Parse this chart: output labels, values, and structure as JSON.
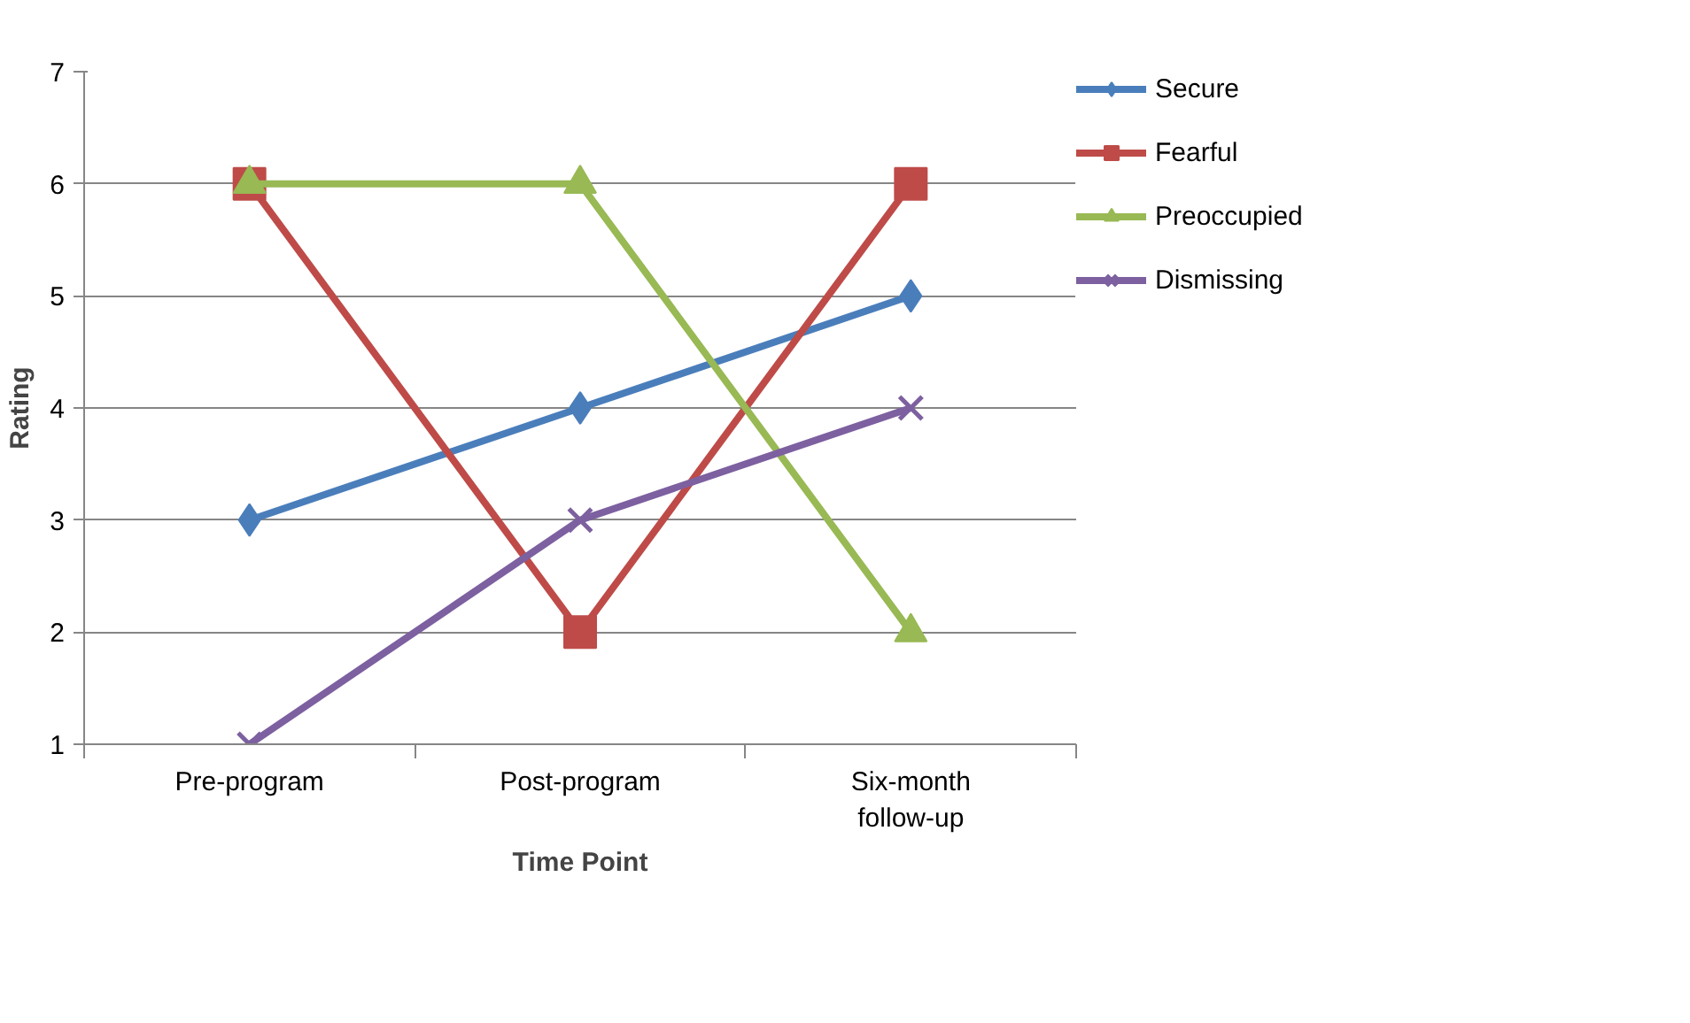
{
  "chart_data": {
    "type": "line",
    "xlabel": "Time Point",
    "ylabel": "Rating",
    "categories": [
      "Pre-program",
      "Post-program",
      "Six-month follow-up"
    ],
    "series": [
      {
        "name": "Secure",
        "color": "#4a7ebb",
        "values": [
          3,
          4,
          5
        ],
        "marker": "diamond"
      },
      {
        "name": "Fearful",
        "color": "#be4b48",
        "values": [
          6,
          2,
          6
        ],
        "marker": "square"
      },
      {
        "name": "Preoccupied",
        "color": "#98b954",
        "values": [
          6,
          6,
          2
        ],
        "marker": "triangle"
      },
      {
        "name": "Dismissing",
        "color": "#7d60a0",
        "values": [
          1,
          3,
          4
        ],
        "marker": "cross"
      }
    ],
    "ylim": [
      1,
      7
    ],
    "yticks": [
      1,
      2,
      3,
      4,
      5,
      6,
      7
    ],
    "grid": "y",
    "legend": "right",
    "line_style": "solid"
  }
}
